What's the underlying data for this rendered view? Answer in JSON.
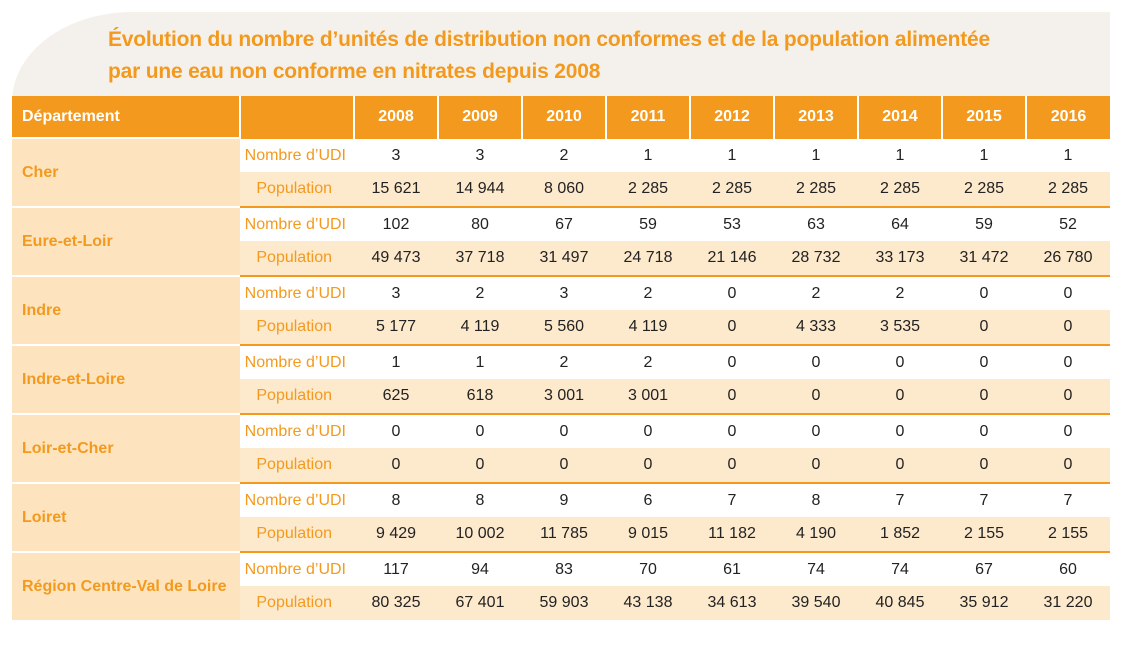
{
  "title": {
    "line1": "Évolution du nombre d’unités de distribution non conformes et de la population alimentée",
    "line2": "par une eau non conforme en nitrates depuis 2008"
  },
  "table": {
    "dept_header": "Département",
    "years": [
      "2008",
      "2009",
      "2010",
      "2011",
      "2012",
      "2013",
      "2014",
      "2015",
      "2016"
    ],
    "row_labels": {
      "udi": "Nombre d’UDI",
      "population": "Population"
    },
    "departments": [
      {
        "name": "Cher",
        "udi": [
          "3",
          "3",
          "2",
          "1",
          "1",
          "1",
          "1",
          "1",
          "1"
        ],
        "population": [
          "15 621",
          "14 944",
          "8 060",
          "2 285",
          "2 285",
          "2 285",
          "2 285",
          "2 285",
          "2 285"
        ]
      },
      {
        "name": "Eure-et-Loir",
        "udi": [
          "102",
          "80",
          "67",
          "59",
          "53",
          "63",
          "64",
          "59",
          "52"
        ],
        "population": [
          "49 473",
          "37 718",
          "31 497",
          "24 718",
          "21 146",
          "28 732",
          "33 173",
          "31 472",
          "26 780"
        ]
      },
      {
        "name": "Indre",
        "udi": [
          "3",
          "2",
          "3",
          "2",
          "0",
          "2",
          "2",
          "0",
          "0"
        ],
        "population": [
          "5 177",
          "4 119",
          "5 560",
          "4 119",
          "0",
          "4 333",
          "3 535",
          "0",
          "0"
        ]
      },
      {
        "name": "Indre-et-Loire",
        "udi": [
          "1",
          "1",
          "2",
          "2",
          "0",
          "0",
          "0",
          "0",
          "0"
        ],
        "population": [
          "625",
          "618",
          "3 001",
          "3 001",
          "0",
          "0",
          "0",
          "0",
          "0"
        ]
      },
      {
        "name": "Loir-et-Cher",
        "udi": [
          "0",
          "0",
          "0",
          "0",
          "0",
          "0",
          "0",
          "0",
          "0"
        ],
        "population": [
          "0",
          "0",
          "0",
          "0",
          "0",
          "0",
          "0",
          "0",
          "0"
        ]
      },
      {
        "name": "Loiret",
        "udi": [
          "8",
          "8",
          "9",
          "6",
          "7",
          "8",
          "7",
          "7",
          "7"
        ],
        "population": [
          "9 429",
          "10 002",
          "11 785",
          "9 015",
          "11 182",
          "4 190",
          "1 852",
          "2 155",
          "2 155"
        ]
      },
      {
        "name": "Région Centre-Val de Loire",
        "udi": [
          "117",
          "94",
          "83",
          "70",
          "61",
          "74",
          "74",
          "67",
          "60"
        ],
        "population": [
          "80 325",
          "67 401",
          "59 903",
          "43 138",
          "34 613",
          "39 540",
          "40 845",
          "35 912",
          "31 220"
        ]
      }
    ]
  },
  "colors": {
    "accent": "#f39a1e",
    "dept_bg": "#fde4bf",
    "population_row_bg": "#fde9cc",
    "title_bg": "#f4f1ec"
  }
}
